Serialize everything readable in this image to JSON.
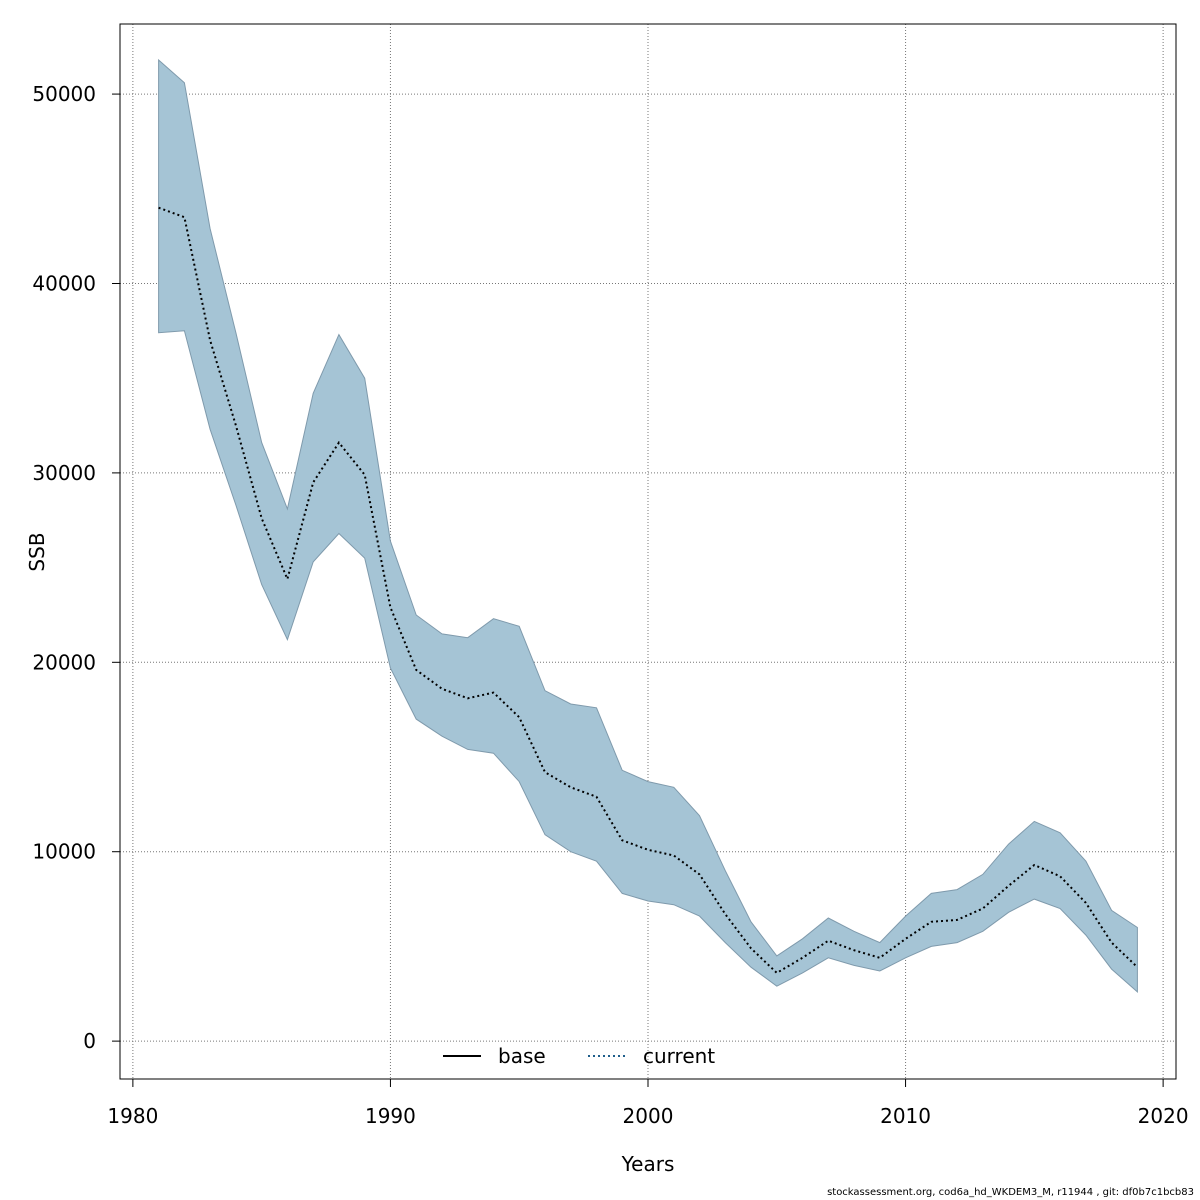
{
  "chart_data": {
    "type": "line",
    "xlabel": "Years",
    "ylabel": "SSB",
    "xlim": [
      1979.5,
      2020.5
    ],
    "ylim": [
      -2000,
      53700
    ],
    "x_ticks": [
      1980,
      1990,
      2000,
      2010,
      2020
    ],
    "y_ticks": [
      0,
      10000,
      20000,
      30000,
      40000,
      50000
    ],
    "grid": true,
    "legend_position": "bottom-center",
    "legend": [
      {
        "name": "base",
        "style": "solid",
        "color": "#000000"
      },
      {
        "name": "current",
        "style": "dotted",
        "color": "#1f5f8b"
      }
    ],
    "band_color": "#a5c4d5",
    "years": [
      1981,
      1982,
      1983,
      1984,
      1985,
      1986,
      1987,
      1988,
      1989,
      1990,
      1991,
      1992,
      1993,
      1994,
      1995,
      1996,
      1997,
      1998,
      1999,
      2000,
      2001,
      2002,
      2003,
      2004,
      2005,
      2006,
      2007,
      2008,
      2009,
      2010,
      2011,
      2012,
      2013,
      2014,
      2015,
      2016,
      2017,
      2018,
      2019
    ],
    "series": [
      {
        "name": "current",
        "values": [
          44000,
          43500,
          37000,
          32500,
          27600,
          24400,
          29500,
          31600,
          29900,
          22900,
          19600,
          18600,
          18100,
          18400,
          17100,
          14200,
          13400,
          12900,
          10600,
          10100,
          9800,
          8800,
          6700,
          4900,
          3600,
          4400,
          5300,
          4800,
          4400,
          5400,
          6300,
          6400,
          7000,
          8200,
          9300,
          8700,
          7300,
          5200,
          3900
        ]
      },
      {
        "name": "upper",
        "values": [
          51800,
          50600,
          42900,
          37400,
          31600,
          28100,
          34200,
          37300,
          35000,
          26400,
          22500,
          21500,
          21300,
          22300,
          21900,
          18500,
          17800,
          17600,
          14300,
          13700,
          13400,
          11900,
          9000,
          6300,
          4500,
          5400,
          6500,
          5800,
          5200,
          6600,
          7800,
          8000,
          8800,
          10400,
          11600,
          11000,
          9500,
          6900,
          6000
        ]
      },
      {
        "name": "lower",
        "values": [
          37400,
          37500,
          32300,
          28300,
          24100,
          21200,
          25300,
          26800,
          25500,
          19700,
          17000,
          16100,
          15400,
          15200,
          13700,
          10900,
          10000,
          9500,
          7800,
          7400,
          7200,
          6600,
          5200,
          3900,
          2900,
          3600,
          4400,
          4000,
          3700,
          4400,
          5000,
          5200,
          5800,
          6800,
          7500,
          7000,
          5600,
          3800,
          2600
        ]
      }
    ]
  },
  "footer_text": "stockassessment.org, cod6a_hd_WKDEM3_M, r11944 , git: df0b7c1bcb83"
}
